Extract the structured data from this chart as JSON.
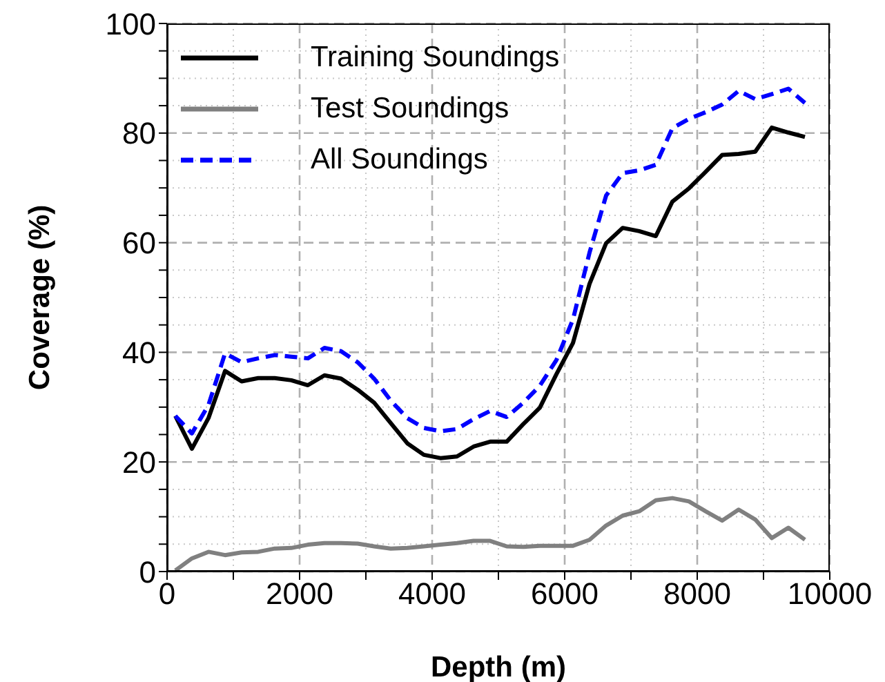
{
  "chart_data": {
    "type": "line",
    "xlabel": "Depth (m)",
    "ylabel": "Coverage (%)",
    "x": [
      125,
      375,
      625,
      875,
      1125,
      1375,
      1625,
      1875,
      2125,
      2375,
      2625,
      2875,
      3125,
      3375,
      3625,
      3875,
      4125,
      4375,
      4625,
      4875,
      5125,
      5375,
      5625,
      5875,
      6125,
      6375,
      6625,
      6875,
      7125,
      7375,
      7625,
      7875,
      8125,
      8375,
      8625,
      8875,
      9125,
      9375,
      9625
    ],
    "series": [
      {
        "name": "Training Soundings",
        "color": "#000000",
        "line_style": "solid",
        "values": [
          28.4,
          22.4,
          28.0,
          36.6,
          34.7,
          35.3,
          35.3,
          34.9,
          34.0,
          35.8,
          35.2,
          33.2,
          30.8,
          27.1,
          23.4,
          21.3,
          20.7,
          21.0,
          22.8,
          23.7,
          23.7,
          26.9,
          29.9,
          36.0,
          41.7,
          52.5,
          59.9,
          62.7,
          62.1,
          61.2,
          67.5,
          69.9,
          72.9,
          76.0,
          76.2,
          76.6,
          81.0,
          80.1,
          79.3
        ]
      },
      {
        "name": "Test Soundings",
        "color": "#808080",
        "line_style": "solid",
        "values": [
          0.2,
          2.4,
          3.6,
          3.0,
          3.5,
          3.6,
          4.2,
          4.3,
          4.9,
          5.2,
          5.2,
          5.1,
          4.6,
          4.2,
          4.3,
          4.6,
          4.9,
          5.2,
          5.6,
          5.6,
          4.6,
          4.5,
          4.7,
          4.7,
          4.7,
          5.8,
          8.4,
          10.2,
          11.0,
          13.0,
          13.4,
          12.8,
          11.0,
          9.3,
          11.3,
          9.5,
          6.1,
          8.0,
          5.8
        ]
      },
      {
        "name": "All Soundings",
        "color": "#0000ff",
        "line_style": "dashed",
        "values": [
          28.4,
          25.2,
          30.4,
          39.8,
          38.2,
          38.9,
          39.5,
          39.2,
          38.9,
          40.8,
          40.2,
          38.2,
          35.2,
          31.2,
          28.0,
          26.2,
          25.6,
          26.0,
          27.8,
          29.3,
          28.2,
          30.8,
          33.9,
          38.6,
          46.0,
          58.2,
          68.6,
          72.7,
          73.2,
          74.2,
          80.9,
          82.6,
          83.8,
          85.2,
          87.7,
          86.2,
          87.1,
          88.1,
          85.5
        ]
      }
    ],
    "xlim": [
      0,
      10000
    ],
    "xticks": [
      0,
      {
        "value": 1000,
        "label": null
      },
      2000,
      {
        "value": 3000,
        "label": null
      },
      4000,
      {
        "value": 5000,
        "label": null
      },
      6000,
      {
        "value": 7000,
        "label": null
      },
      8000,
      {
        "value": 9000,
        "label": null
      },
      10000
    ],
    "ylim": [
      0,
      100
    ],
    "yticks": [
      0,
      {
        "value": 5,
        "label": null
      },
      {
        "value": 10,
        "label": null
      },
      {
        "value": 15,
        "label": null
      },
      20,
      {
        "value": 25,
        "label": null
      },
      {
        "value": 30,
        "label": null
      },
      {
        "value": 35,
        "label": null
      },
      40,
      {
        "value": 45,
        "label": null
      },
      {
        "value": 50,
        "label": null
      },
      {
        "value": 55,
        "label": null
      },
      60,
      {
        "value": 65,
        "label": null
      },
      {
        "value": 70,
        "label": null
      },
      {
        "value": 75,
        "label": null
      },
      80,
      {
        "value": 85,
        "label": null
      },
      {
        "value": 90,
        "label": null
      },
      {
        "value": 95,
        "label": null
      },
      100
    ],
    "grid": true,
    "legend": "top left",
    "marker": "none"
  }
}
